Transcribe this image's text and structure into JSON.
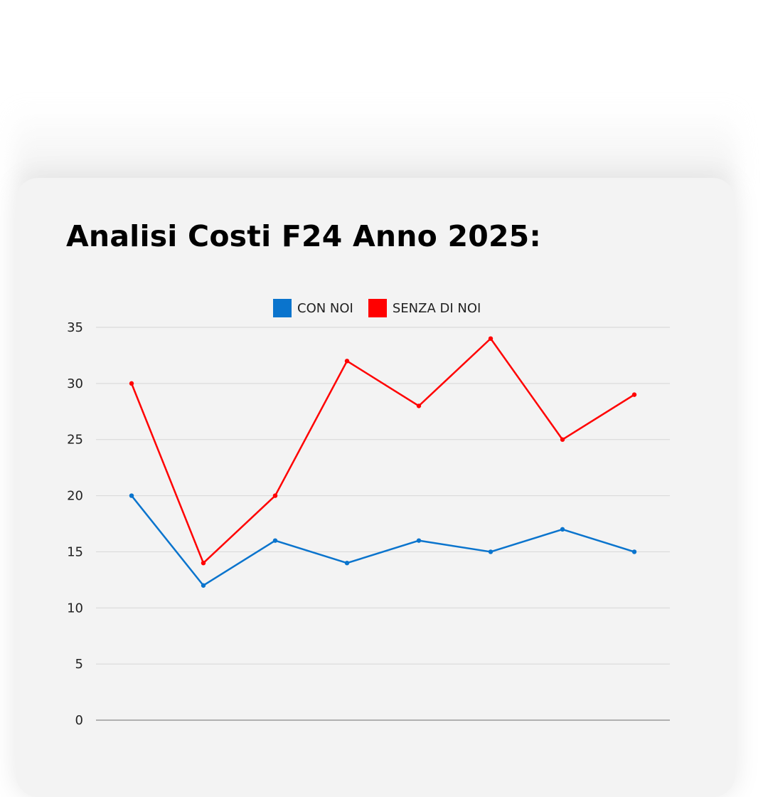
{
  "title": "Analisi Costi F24 Anno 2025:",
  "chart_data": {
    "type": "line",
    "title": "Analisi Costi F24 Anno 2025:",
    "xlabel": "",
    "ylabel": "",
    "ylim": [
      0,
      35
    ],
    "yticks": [
      0,
      5,
      10,
      15,
      20,
      25,
      30,
      35
    ],
    "x": [
      1,
      2,
      3,
      4,
      5,
      6,
      7,
      8
    ],
    "grid": true,
    "legend_position": "top-center",
    "series": [
      {
        "name": "CON NOI",
        "color": "#0A74CD",
        "values": [
          20,
          12,
          16,
          14,
          16,
          15,
          17,
          15
        ]
      },
      {
        "name": "SENZA DI NOI",
        "color": "#FF0000",
        "values": [
          30,
          14,
          20,
          32,
          28,
          34,
          25,
          29
        ]
      }
    ]
  }
}
